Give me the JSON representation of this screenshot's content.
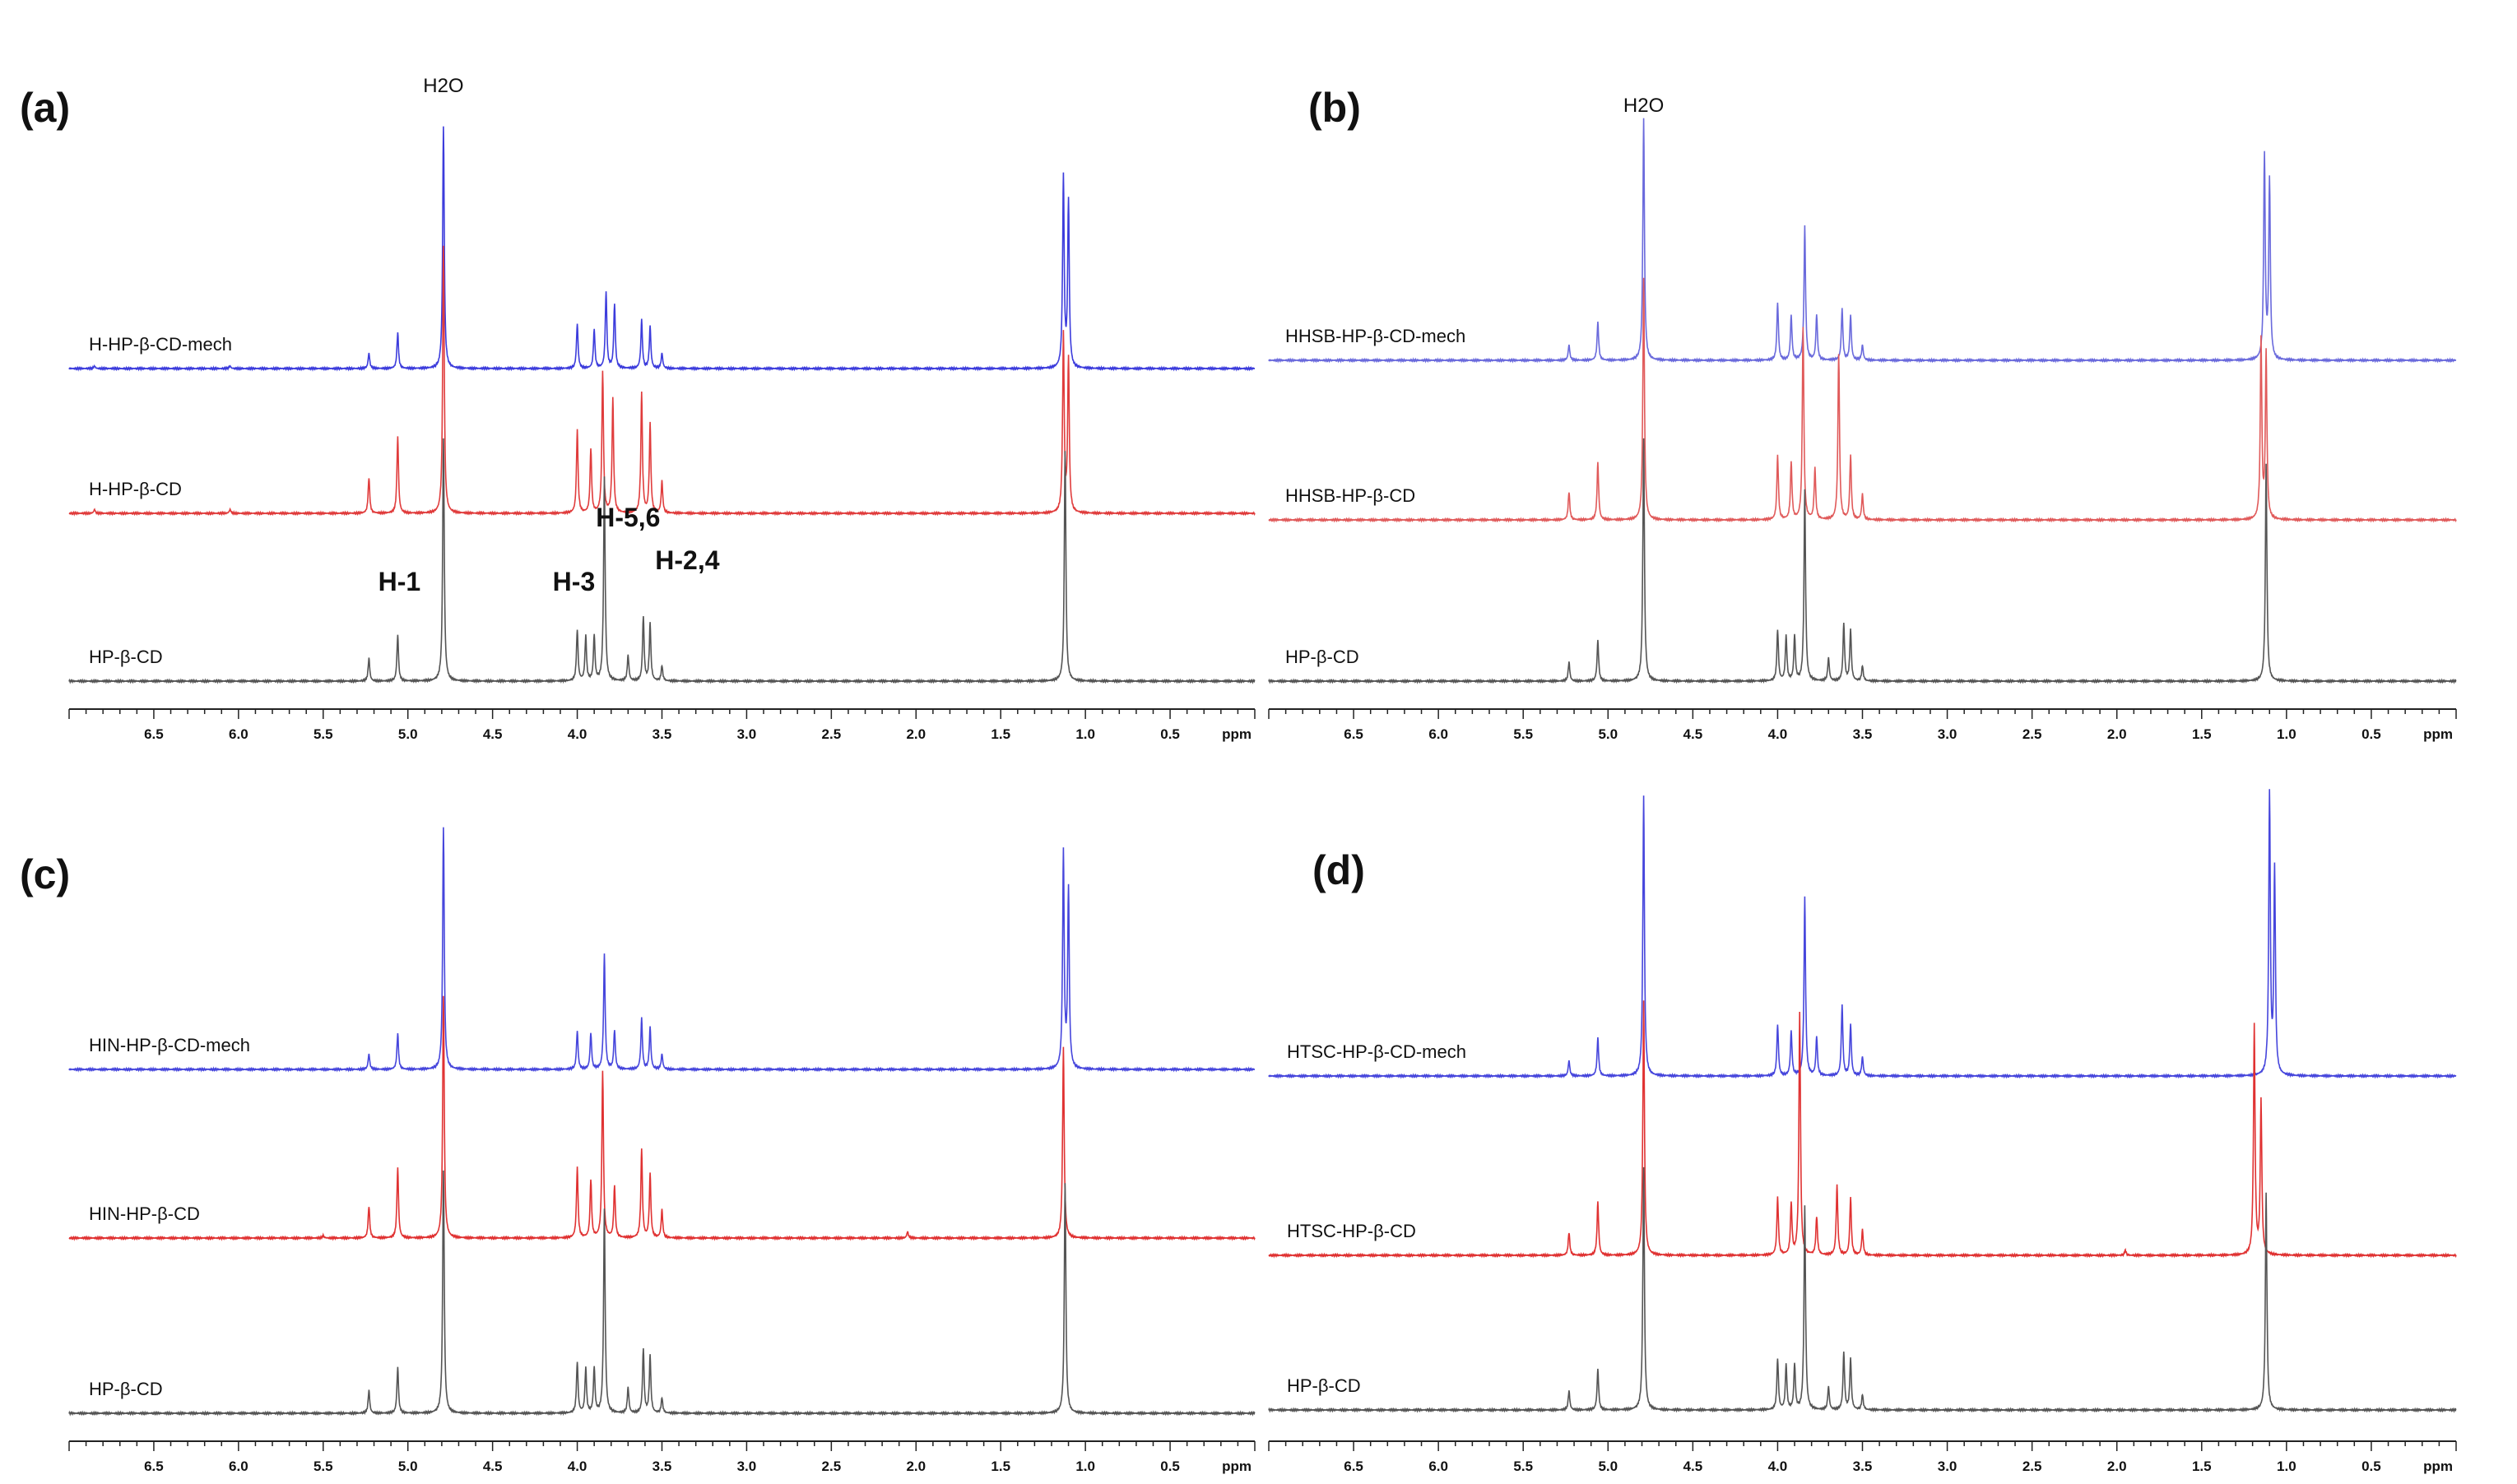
{
  "chart_data": [
    {
      "type": "line",
      "panel": "(a)",
      "xlabel": "ppm",
      "xlim": [
        7.0,
        0.0
      ],
      "xticks": [
        "6.5",
        "6.0",
        "5.5",
        "5.0",
        "4.5",
        "4.0",
        "3.5",
        "3.0",
        "2.5",
        "2.0",
        "1.5",
        "1.0",
        "0.5"
      ],
      "solvent_label": "H2O",
      "peak_labels": [
        {
          "text": "H-1",
          "ppm": 5.1
        },
        {
          "text": "H-3",
          "ppm": 3.95
        },
        {
          "text": "H-5,6",
          "ppm": 3.75
        },
        {
          "text": "H-2,4",
          "ppm": 3.45
        }
      ],
      "series": [
        {
          "name": "H-HP-β-CD-mech",
          "color": "#3c3cdc",
          "peaks": [
            [
              5.23,
              0.12
            ],
            [
              5.06,
              0.28
            ],
            [
              4.79,
              1.9
            ],
            [
              4.0,
              0.35
            ],
            [
              3.9,
              0.3
            ],
            [
              3.83,
              0.6
            ],
            [
              3.78,
              0.5
            ],
            [
              3.62,
              0.38
            ],
            [
              3.57,
              0.33
            ],
            [
              3.5,
              0.12
            ],
            [
              1.13,
              1.5
            ],
            [
              1.1,
              1.3
            ],
            [
              6.05,
              0.02
            ],
            [
              6.85,
              0.02
            ]
          ]
        },
        {
          "name": "H-HP-β-CD",
          "color": "#e03c3c",
          "peaks": [
            [
              5.23,
              0.28
            ],
            [
              5.06,
              0.6
            ],
            [
              4.79,
              2.1
            ],
            [
              4.0,
              0.65
            ],
            [
              3.92,
              0.5
            ],
            [
              3.85,
              1.1
            ],
            [
              3.79,
              0.9
            ],
            [
              3.62,
              0.95
            ],
            [
              3.57,
              0.7
            ],
            [
              3.5,
              0.25
            ],
            [
              1.13,
              1.4
            ],
            [
              1.1,
              1.2
            ],
            [
              6.05,
              0.03
            ],
            [
              6.85,
              0.03
            ]
          ]
        },
        {
          "name": "HP-β-CD",
          "color": "#555555",
          "peaks": [
            [
              5.23,
              0.18
            ],
            [
              5.06,
              0.36
            ],
            [
              4.79,
              1.9
            ],
            [
              4.0,
              0.4
            ],
            [
              3.95,
              0.35
            ],
            [
              3.9,
              0.35
            ],
            [
              3.84,
              1.6
            ],
            [
              3.7,
              0.2
            ],
            [
              3.61,
              0.5
            ],
            [
              3.57,
              0.45
            ],
            [
              3.5,
              0.12
            ],
            [
              1.12,
              1.8
            ]
          ]
        }
      ]
    },
    {
      "type": "line",
      "panel": "(b)",
      "xlabel": "ppm",
      "xlim": [
        7.0,
        0.0
      ],
      "xticks": [
        "6.5",
        "6.0",
        "5.5",
        "5.0",
        "4.5",
        "4.0",
        "3.5",
        "3.0",
        "2.5",
        "2.0",
        "1.5",
        "1.0",
        "0.5"
      ],
      "solvent_label": "H2O",
      "series": [
        {
          "name": "HHSB-HP-β-CD-mech",
          "color": "#6a6adc",
          "peaks": [
            [
              5.23,
              0.12
            ],
            [
              5.06,
              0.3
            ],
            [
              4.79,
              1.9
            ],
            [
              4.0,
              0.45
            ],
            [
              3.92,
              0.35
            ],
            [
              3.84,
              1.05
            ],
            [
              3.77,
              0.35
            ],
            [
              3.62,
              0.4
            ],
            [
              3.57,
              0.35
            ],
            [
              3.5,
              0.12
            ],
            [
              1.13,
              1.6
            ],
            [
              1.1,
              1.4
            ]
          ]
        },
        {
          "name": "HHSB-HP-β-CD",
          "color": "#e05a5a",
          "peaks": [
            [
              5.23,
              0.22
            ],
            [
              5.06,
              0.45
            ],
            [
              4.79,
              1.9
            ],
            [
              4.0,
              0.5
            ],
            [
              3.92,
              0.45
            ],
            [
              3.85,
              1.5
            ],
            [
              3.78,
              0.4
            ],
            [
              3.64,
              1.3
            ],
            [
              3.57,
              0.5
            ],
            [
              3.5,
              0.2
            ],
            [
              1.15,
              1.4
            ],
            [
              1.12,
              1.3
            ]
          ]
        },
        {
          "name": "HP-β-CD",
          "color": "#555555",
          "peaks": [
            [
              5.23,
              0.15
            ],
            [
              5.06,
              0.32
            ],
            [
              4.79,
              1.9
            ],
            [
              4.0,
              0.4
            ],
            [
              3.95,
              0.35
            ],
            [
              3.9,
              0.35
            ],
            [
              3.84,
              1.5
            ],
            [
              3.7,
              0.18
            ],
            [
              3.61,
              0.45
            ],
            [
              3.57,
              0.4
            ],
            [
              3.5,
              0.12
            ],
            [
              1.12,
              1.7
            ]
          ]
        }
      ]
    },
    {
      "type": "line",
      "panel": "(c)",
      "xlabel": "ppm",
      "xlim": [
        7.0,
        0.0
      ],
      "xticks": [
        "6.5",
        "6.0",
        "5.5",
        "5.0",
        "4.5",
        "4.0",
        "3.5",
        "3.0",
        "2.5",
        "2.0",
        "1.5",
        "1.0",
        "0.5"
      ],
      "series": [
        {
          "name": "HIN-HP-β-CD-mech",
          "color": "#4646dc",
          "peaks": [
            [
              5.23,
              0.12
            ],
            [
              5.06,
              0.28
            ],
            [
              4.79,
              1.9
            ],
            [
              4.0,
              0.3
            ],
            [
              3.92,
              0.28
            ],
            [
              3.84,
              0.9
            ],
            [
              3.78,
              0.3
            ],
            [
              3.62,
              0.4
            ],
            [
              3.57,
              0.33
            ],
            [
              3.5,
              0.12
            ],
            [
              1.13,
              1.7
            ],
            [
              1.1,
              1.4
            ]
          ]
        },
        {
          "name": "HIN-HP-β-CD",
          "color": "#e03232",
          "peaks": [
            [
              5.23,
              0.25
            ],
            [
              5.06,
              0.55
            ],
            [
              4.79,
              1.9
            ],
            [
              4.0,
              0.55
            ],
            [
              3.92,
              0.45
            ],
            [
              3.85,
              1.3
            ],
            [
              3.78,
              0.4
            ],
            [
              3.62,
              0.7
            ],
            [
              3.57,
              0.5
            ],
            [
              3.5,
              0.22
            ],
            [
              1.13,
              1.5
            ],
            [
              2.05,
              0.05
            ],
            [
              5.5,
              0.02
            ]
          ]
        },
        {
          "name": "HP-β-CD",
          "color": "#555555",
          "peaks": [
            [
              5.23,
              0.18
            ],
            [
              5.06,
              0.36
            ],
            [
              4.79,
              1.9
            ],
            [
              4.0,
              0.4
            ],
            [
              3.95,
              0.35
            ],
            [
              3.9,
              0.35
            ],
            [
              3.84,
              1.6
            ],
            [
              3.7,
              0.2
            ],
            [
              3.61,
              0.5
            ],
            [
              3.57,
              0.45
            ],
            [
              3.5,
              0.12
            ],
            [
              1.12,
              1.8
            ]
          ]
        }
      ]
    },
    {
      "type": "line",
      "panel": "(d)",
      "xlabel": "ppm",
      "xlim": [
        7.0,
        0.0
      ],
      "xticks": [
        "6.5",
        "6.0",
        "5.5",
        "5.0",
        "4.5",
        "4.0",
        "3.5",
        "3.0",
        "2.5",
        "2.0",
        "1.5",
        "1.0",
        "0.5"
      ],
      "series": [
        {
          "name": "HTSC-HP-β-CD-mech",
          "color": "#4646dc",
          "peaks": [
            [
              5.23,
              0.12
            ],
            [
              5.06,
              0.3
            ],
            [
              4.79,
              2.2
            ],
            [
              4.0,
              0.4
            ],
            [
              3.92,
              0.35
            ],
            [
              3.84,
              1.4
            ],
            [
              3.77,
              0.3
            ],
            [
              3.62,
              0.55
            ],
            [
              3.57,
              0.4
            ],
            [
              3.5,
              0.15
            ],
            [
              1.1,
              2.2
            ],
            [
              1.07,
              1.6
            ]
          ]
        },
        {
          "name": "HTSC-HP-β-CD",
          "color": "#e03232",
          "peaks": [
            [
              5.23,
              0.18
            ],
            [
              5.06,
              0.42
            ],
            [
              4.79,
              2.0
            ],
            [
              4.0,
              0.45
            ],
            [
              3.92,
              0.4
            ],
            [
              3.87,
              1.9
            ],
            [
              3.77,
              0.3
            ],
            [
              3.65,
              0.55
            ],
            [
              3.57,
              0.45
            ],
            [
              3.5,
              0.2
            ],
            [
              1.19,
              1.8
            ],
            [
              1.15,
              1.2
            ],
            [
              1.95,
              0.04
            ]
          ]
        },
        {
          "name": "HP-β-CD",
          "color": "#555555",
          "peaks": [
            [
              5.23,
              0.15
            ],
            [
              5.06,
              0.32
            ],
            [
              4.79,
              1.9
            ],
            [
              4.0,
              0.4
            ],
            [
              3.95,
              0.35
            ],
            [
              3.9,
              0.35
            ],
            [
              3.84,
              1.6
            ],
            [
              3.7,
              0.18
            ],
            [
              3.61,
              0.45
            ],
            [
              3.57,
              0.4
            ],
            [
              3.5,
              0.12
            ],
            [
              1.12,
              1.7
            ]
          ]
        }
      ]
    }
  ]
}
